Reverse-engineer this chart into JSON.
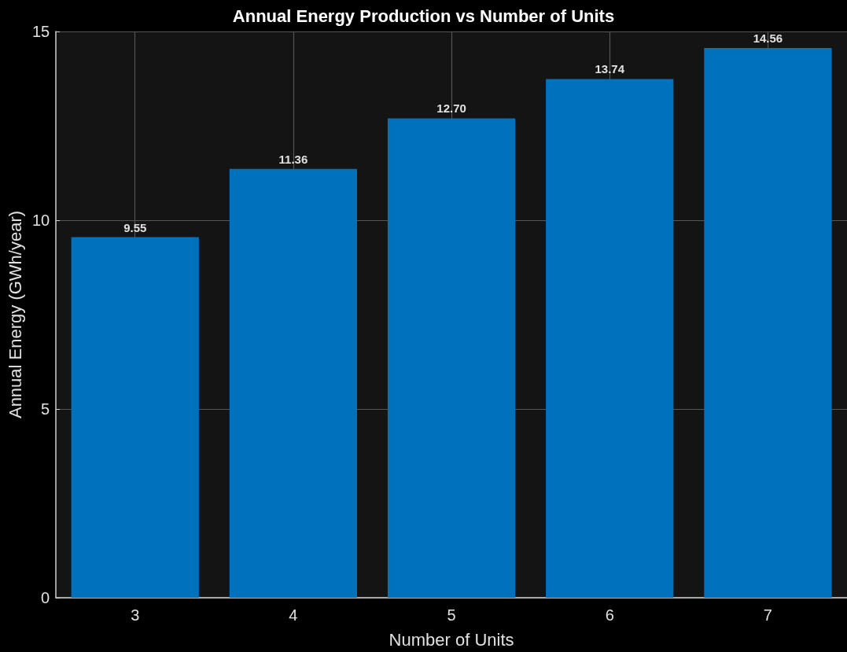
{
  "chart_data": {
    "type": "bar",
    "title": "Annual Energy Production vs Number of Units",
    "xlabel": "Number of Units",
    "ylabel": "Annual Energy (GWh/year)",
    "x": [
      3,
      4,
      5,
      6,
      7
    ],
    "values": [
      9.55,
      11.36,
      12.7,
      13.74,
      14.56
    ],
    "value_labels": [
      "9.55",
      "11.36",
      "12.70",
      "13.74",
      "14.56"
    ],
    "color": "#0072bd",
    "xlim": [
      2.5,
      7.5
    ],
    "xticks": [
      3,
      4,
      5,
      6,
      7
    ],
    "ylim": [
      0,
      15
    ],
    "yticks": [
      0,
      5,
      10,
      15
    ],
    "grid": true
  }
}
